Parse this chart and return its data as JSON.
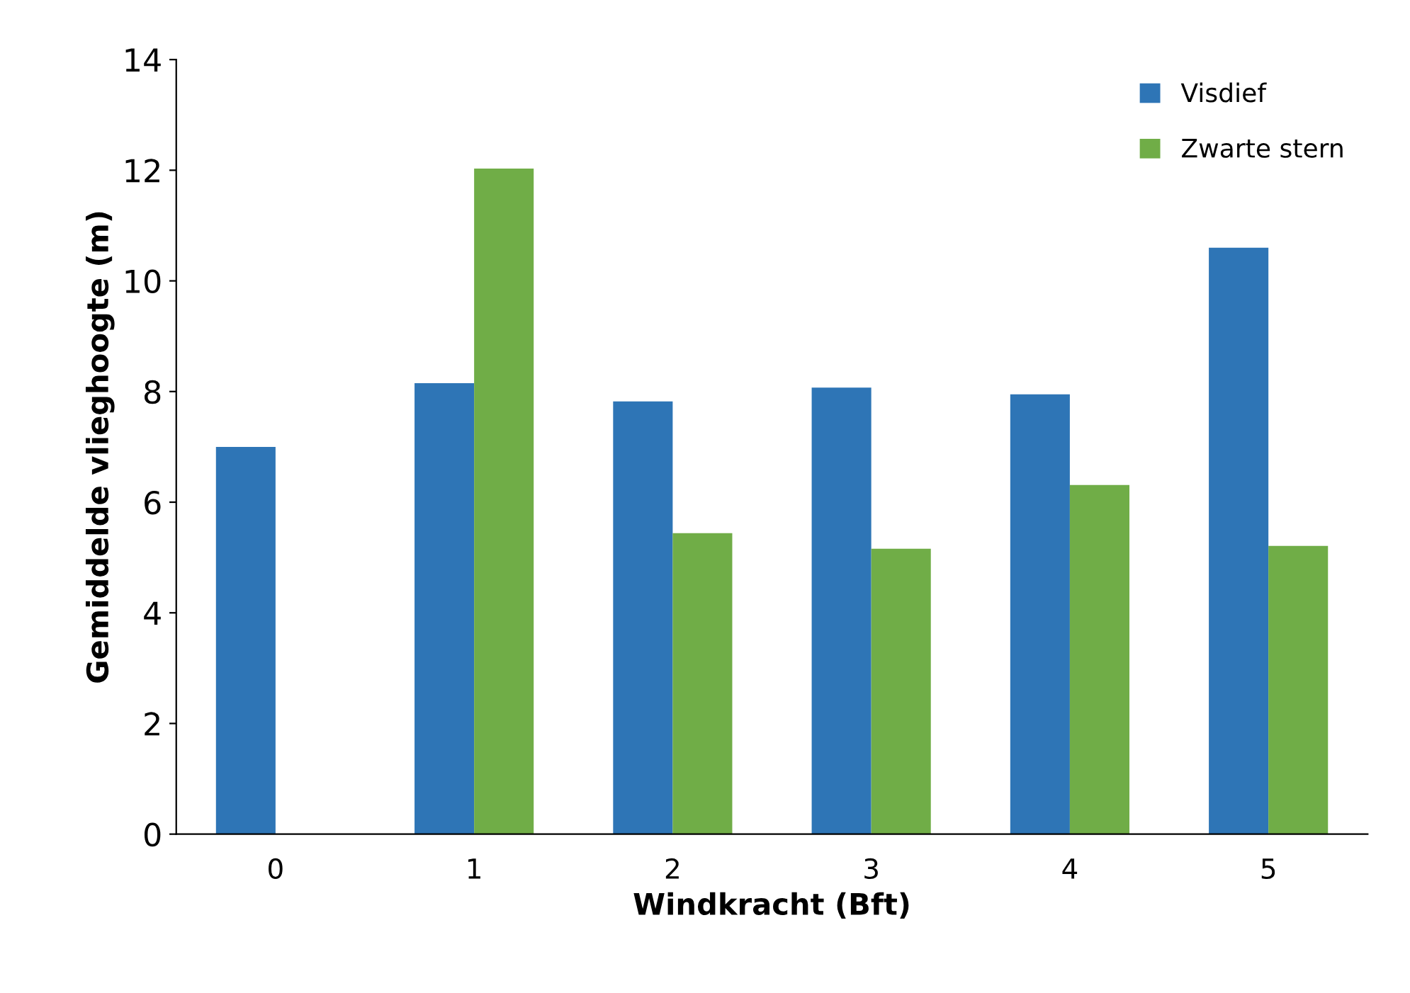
{
  "chart_data": {
    "type": "bar",
    "xlabel": "Windkracht (Bft)",
    "ylabel": "Gemiddelde vlieghoogte (m)",
    "categories": [
      "0",
      "1",
      "2",
      "3",
      "4",
      "5"
    ],
    "series": [
      {
        "name": "Visdief",
        "color": "#2e75b6",
        "values": [
          7.0,
          8.15,
          7.82,
          8.07,
          7.95,
          10.6
        ]
      },
      {
        "name": "Zwarte stern",
        "color": "#70ad47",
        "values": [
          null,
          12.03,
          5.44,
          5.16,
          6.31,
          5.21
        ]
      }
    ],
    "ylim": [
      0,
      14
    ],
    "yticks": [
      0,
      2,
      4,
      6,
      8,
      10,
      12,
      14
    ],
    "grid": false,
    "legend": "top right"
  }
}
